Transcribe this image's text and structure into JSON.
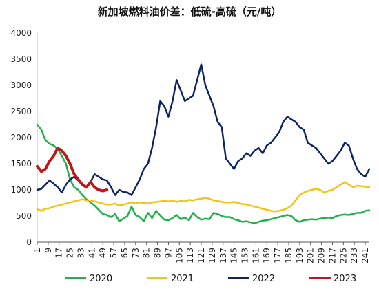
{
  "chart_data": {
    "type": "line",
    "title": "新加坡燃料油价差：低硫-高硫（元/吨）",
    "xlabel": "",
    "ylabel": "",
    "ylim": [
      0,
      4000
    ],
    "yticks": [
      0,
      500,
      1000,
      1500,
      2000,
      2500,
      3000,
      3500,
      4000
    ],
    "xlim": [
      1,
      244
    ],
    "xticks": [
      1,
      9,
      17,
      25,
      33,
      41,
      49,
      57,
      65,
      73,
      81,
      89,
      97,
      105,
      113,
      121,
      129,
      137,
      145,
      153,
      161,
      169,
      177,
      185,
      193,
      201,
      209,
      217,
      225,
      233,
      241
    ],
    "grid": false,
    "legend_position": "bottom",
    "series": [
      {
        "name": "2020",
        "color": "#22b04b",
        "x": [
          1,
          4,
          7,
          10,
          13,
          16,
          19,
          22,
          25,
          28,
          31,
          34,
          37,
          40,
          43,
          46,
          49,
          52,
          55,
          58,
          61,
          64,
          67,
          70,
          73,
          76,
          79,
          82,
          85,
          88,
          91,
          94,
          97,
          100,
          103,
          106,
          109,
          112,
          115,
          118,
          121,
          124,
          127,
          130,
          133,
          136,
          139,
          142,
          145,
          148,
          151,
          154,
          157,
          160,
          163,
          166,
          169,
          172,
          175,
          178,
          181,
          184,
          187,
          190,
          193,
          196,
          199,
          202,
          205,
          208,
          211,
          214,
          217,
          220,
          223,
          226,
          229,
          232,
          235,
          238,
          241,
          244
        ],
        "y": [
          2250,
          2150,
          1950,
          1880,
          1850,
          1780,
          1650,
          1500,
          1200,
          1050,
          1000,
          900,
          820,
          760,
          700,
          620,
          540,
          520,
          480,
          540,
          400,
          450,
          500,
          680,
          520,
          480,
          400,
          560,
          460,
          600,
          510,
          430,
          420,
          460,
          520,
          440,
          470,
          420,
          560,
          480,
          430,
          450,
          440,
          560,
          540,
          500,
          480,
          480,
          440,
          420,
          390,
          400,
          380,
          360,
          390,
          410,
          420,
          440,
          460,
          480,
          500,
          520,
          500,
          420,
          390,
          420,
          430,
          440,
          430,
          450,
          460,
          470,
          460,
          500,
          520,
          530,
          520,
          540,
          560,
          560,
          600,
          610
        ]
      },
      {
        "name": "2021",
        "color": "#f5c21b",
        "x": [
          1,
          4,
          7,
          10,
          13,
          16,
          19,
          22,
          25,
          28,
          31,
          34,
          37,
          40,
          43,
          46,
          49,
          52,
          55,
          58,
          61,
          64,
          67,
          70,
          73,
          76,
          79,
          82,
          85,
          88,
          91,
          94,
          97,
          100,
          103,
          106,
          109,
          112,
          115,
          118,
          121,
          124,
          127,
          130,
          133,
          136,
          139,
          142,
          145,
          148,
          151,
          154,
          157,
          160,
          163,
          166,
          169,
          172,
          175,
          178,
          181,
          184,
          187,
          190,
          193,
          196,
          199,
          202,
          205,
          208,
          211,
          214,
          217,
          220,
          223,
          226,
          229,
          232,
          235,
          238,
          241,
          244
        ],
        "y": [
          630,
          600,
          640,
          650,
          680,
          700,
          720,
          740,
          760,
          780,
          800,
          820,
          800,
          800,
          780,
          760,
          740,
          720,
          720,
          740,
          700,
          720,
          740,
          760,
          740,
          760,
          750,
          740,
          760,
          770,
          780,
          790,
          780,
          800,
          770,
          790,
          780,
          810,
          800,
          820,
          830,
          850,
          830,
          800,
          790,
          770,
          760,
          760,
          770,
          750,
          730,
          720,
          700,
          680,
          660,
          640,
          620,
          600,
          590,
          600,
          620,
          650,
          700,
          800,
          900,
          950,
          980,
          1000,
          1020,
          1000,
          950,
          980,
          1000,
          1050,
          1100,
          1150,
          1100,
          1050,
          1080,
          1070,
          1060,
          1050
        ]
      },
      {
        "name": "2022",
        "color": "#0d2461",
        "x": [
          1,
          4,
          7,
          10,
          13,
          16,
          19,
          22,
          25,
          28,
          31,
          34,
          37,
          40,
          43,
          46,
          49,
          52,
          55,
          58,
          61,
          64,
          67,
          70,
          73,
          76,
          79,
          82,
          85,
          88,
          91,
          94,
          97,
          100,
          103,
          106,
          109,
          112,
          115,
          118,
          121,
          124,
          127,
          130,
          133,
          136,
          139,
          142,
          145,
          148,
          151,
          154,
          157,
          160,
          163,
          166,
          169,
          172,
          175,
          178,
          181,
          184,
          187,
          190,
          193,
          196,
          199,
          202,
          205,
          208,
          211,
          214,
          217,
          220,
          223,
          226,
          229,
          232,
          235,
          238,
          241,
          244
        ],
        "y": [
          1000,
          1020,
          1100,
          1180,
          1120,
          1050,
          950,
          1100,
          1200,
          1250,
          1180,
          1100,
          1050,
          1150,
          1300,
          1250,
          1200,
          1180,
          1050,
          900,
          1000,
          960,
          950,
          900,
          1050,
          1200,
          1400,
          1500,
          1800,
          2200,
          2700,
          2600,
          2400,
          2700,
          3100,
          2900,
          2700,
          2750,
          2800,
          3100,
          3400,
          3000,
          2800,
          2600,
          2300,
          2200,
          1600,
          1500,
          1400,
          1550,
          1600,
          1700,
          1650,
          1750,
          1800,
          1700,
          1850,
          1900,
          2000,
          2100,
          2300,
          2400,
          2350,
          2300,
          2200,
          2150,
          1900,
          1850,
          1800,
          1700,
          1600,
          1500,
          1550,
          1650,
          1750,
          1900,
          1850,
          1600,
          1400,
          1300,
          1250,
          1400
        ]
      },
      {
        "name": "2023",
        "color": "#c0161b",
        "x": [
          1,
          4,
          7,
          10,
          13,
          16,
          19,
          22,
          25,
          28,
          31,
          34,
          37,
          40,
          43,
          46,
          49,
          52
        ],
        "y": [
          1450,
          1350,
          1400,
          1550,
          1650,
          1800,
          1750,
          1650,
          1500,
          1300,
          1200,
          1100,
          1050,
          1150,
          1050,
          1000,
          980,
          1000
        ]
      }
    ]
  }
}
